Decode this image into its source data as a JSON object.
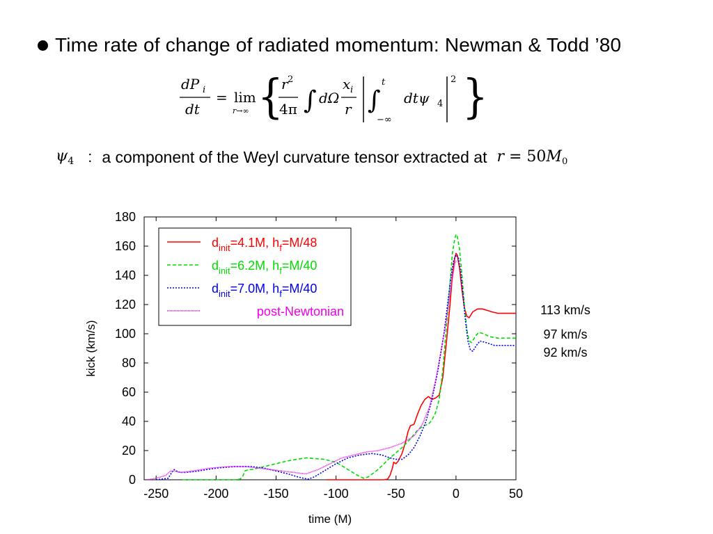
{
  "heading": {
    "text": "Time rate of change of radiated momentum: Newman & Todd ’80"
  },
  "equation": {
    "lhs_num": "dP",
    "lhs_num_sub": "i",
    "lhs_den": "dt",
    "lim": "lim",
    "lim_sub": "r→∞",
    "frac1_num": "r",
    "frac1_num_sup": "2",
    "frac1_den": "4π",
    "integral_body": "dΩ",
    "frac2_num": "x",
    "frac2_num_sub": "i",
    "frac2_den": "r",
    "inner_upper": "t",
    "inner_lower": "−∞",
    "inner_body": "dtψ",
    "inner_body_sub": "4",
    "power": "2"
  },
  "psi_line": {
    "symbol": "ψ",
    "symbol_sub": "4",
    "colon": ":",
    "description": "a component of the Weyl curvature tensor extracted at",
    "math_r": "r",
    "math_eq": " = 50",
    "math_M": "M",
    "math_M_sub": "0"
  },
  "chart_data": {
    "type": "line",
    "xlabel": "time (M)",
    "ylabel": "kick (km/s)",
    "xlim": [
      -260,
      50
    ],
    "ylim": [
      0,
      180
    ],
    "xticks": [
      -250,
      -200,
      -150,
      -100,
      -50,
      0,
      50
    ],
    "yticks": [
      0,
      20,
      40,
      60,
      80,
      100,
      120,
      140,
      160,
      180
    ],
    "grid": false,
    "legend_position": "top-left",
    "series": [
      {
        "name_main": "d",
        "name_sub1": "init",
        "name_mid": "=4.1M, h",
        "name_sub2": "f",
        "name_end": "=M/48",
        "color": "#ff0000",
        "dash": "none",
        "points": [
          [
            -108,
            0
          ],
          [
            -80,
            0
          ],
          [
            -60,
            0
          ],
          [
            -57,
            0.5
          ],
          [
            -55,
            3
          ],
          [
            -53,
            8
          ],
          [
            -52,
            12
          ],
          [
            -50,
            11
          ],
          [
            -48,
            13
          ],
          [
            -45,
            18
          ],
          [
            -42,
            26
          ],
          [
            -40,
            33
          ],
          [
            -38,
            37
          ],
          [
            -35,
            38
          ],
          [
            -32,
            45
          ],
          [
            -29,
            51
          ],
          [
            -26,
            55
          ],
          [
            -23,
            57
          ],
          [
            -20,
            55
          ],
          [
            -17,
            56
          ],
          [
            -14,
            58
          ],
          [
            -11,
            70
          ],
          [
            -8,
            94
          ],
          [
            -5,
            120
          ],
          [
            -3,
            140
          ],
          [
            -1,
            152
          ],
          [
            0,
            155
          ],
          [
            1,
            154
          ],
          [
            3,
            145
          ],
          [
            5,
            130
          ],
          [
            7,
            118
          ],
          [
            9,
            112
          ],
          [
            11,
            111
          ],
          [
            14,
            115
          ],
          [
            18,
            117
          ],
          [
            22,
            117
          ],
          [
            26,
            116
          ],
          [
            30,
            115
          ],
          [
            35,
            114
          ],
          [
            42,
            114
          ],
          [
            50,
            114
          ]
        ]
      },
      {
        "name_main": "d",
        "name_sub1": "init",
        "name_mid": "=6.2M, h",
        "name_sub2": "f",
        "name_end": "=M/40",
        "color": "#00dd00",
        "dash": "5,3",
        "points": [
          [
            -228,
            0
          ],
          [
            -200,
            0
          ],
          [
            -185,
            0
          ],
          [
            -180,
            0.5
          ],
          [
            -178,
            2
          ],
          [
            -176,
            6
          ],
          [
            -173,
            7
          ],
          [
            -170,
            7
          ],
          [
            -165,
            8
          ],
          [
            -160,
            9
          ],
          [
            -150,
            11
          ],
          [
            -140,
            13
          ],
          [
            -125,
            15
          ],
          [
            -110,
            14
          ],
          [
            -100,
            12
          ],
          [
            -90,
            7
          ],
          [
            -82,
            3
          ],
          [
            -77,
            1
          ],
          [
            -73,
            2
          ],
          [
            -65,
            7
          ],
          [
            -55,
            15
          ],
          [
            -45,
            22
          ],
          [
            -38,
            28
          ],
          [
            -32,
            34
          ],
          [
            -27,
            37
          ],
          [
            -23,
            38
          ],
          [
            -20,
            41
          ],
          [
            -17,
            46
          ],
          [
            -14,
            55
          ],
          [
            -11,
            75
          ],
          [
            -8,
            105
          ],
          [
            -5,
            135
          ],
          [
            -3,
            155
          ],
          [
            -1,
            165
          ],
          [
            0,
            168
          ],
          [
            1,
            167
          ],
          [
            3,
            158
          ],
          [
            5,
            140
          ],
          [
            7,
            120
          ],
          [
            9,
            103
          ],
          [
            11,
            95
          ],
          [
            13,
            94
          ],
          [
            16,
            98
          ],
          [
            19,
            101
          ],
          [
            23,
            100
          ],
          [
            28,
            98
          ],
          [
            35,
            97
          ],
          [
            42,
            97
          ],
          [
            50,
            97
          ]
        ]
      },
      {
        "name_main": "d",
        "name_sub1": "init",
        "name_mid": "=7.0M, h",
        "name_sub2": "f",
        "name_end": "=M/40",
        "color": "#0000ee",
        "dash": "2,2",
        "points": [
          [
            -250,
            0
          ],
          [
            -240,
            1
          ],
          [
            -237,
            5
          ],
          [
            -235,
            7
          ],
          [
            -233,
            6
          ],
          [
            -230,
            5
          ],
          [
            -225,
            5
          ],
          [
            -215,
            6
          ],
          [
            -200,
            8
          ],
          [
            -185,
            9
          ],
          [
            -170,
            9
          ],
          [
            -160,
            8
          ],
          [
            -150,
            6
          ],
          [
            -140,
            4
          ],
          [
            -132,
            2
          ],
          [
            -127,
            1
          ],
          [
            -123,
            0.5
          ],
          [
            -118,
            2
          ],
          [
            -110,
            6
          ],
          [
            -100,
            11
          ],
          [
            -90,
            15
          ],
          [
            -80,
            17
          ],
          [
            -70,
            18
          ],
          [
            -62,
            17
          ],
          [
            -55,
            15
          ],
          [
            -50,
            14
          ],
          [
            -45,
            14
          ],
          [
            -40,
            17
          ],
          [
            -35,
            22
          ],
          [
            -30,
            30
          ],
          [
            -25,
            40
          ],
          [
            -20,
            55
          ],
          [
            -15,
            75
          ],
          [
            -10,
            100
          ],
          [
            -7,
            120
          ],
          [
            -4,
            140
          ],
          [
            -2,
            150
          ],
          [
            0,
            154
          ],
          [
            2,
            152
          ],
          [
            4,
            142
          ],
          [
            6,
            125
          ],
          [
            8,
            108
          ],
          [
            10,
            95
          ],
          [
            12,
            89
          ],
          [
            14,
            88
          ],
          [
            17,
            92
          ],
          [
            20,
            95
          ],
          [
            25,
            94
          ],
          [
            32,
            92
          ],
          [
            40,
            92
          ],
          [
            50,
            92
          ]
        ]
      },
      {
        "name_main": "post-Newtonian",
        "color": "#ee00ee",
        "dash": "1,1",
        "points": [
          [
            -258,
            0
          ],
          [
            -250,
            1
          ],
          [
            -242,
            3
          ],
          [
            -238,
            6
          ],
          [
            -235,
            6
          ],
          [
            -230,
            5
          ],
          [
            -220,
            6
          ],
          [
            -205,
            8
          ],
          [
            -190,
            9
          ],
          [
            -175,
            9
          ],
          [
            -165,
            8
          ],
          [
            -155,
            7
          ],
          [
            -145,
            6
          ],
          [
            -135,
            5
          ],
          [
            -125,
            4
          ],
          [
            -115,
            7
          ],
          [
            -105,
            11
          ],
          [
            -95,
            15
          ],
          [
            -85,
            17
          ],
          [
            -75,
            19
          ],
          [
            -65,
            20
          ],
          [
            -55,
            22
          ],
          [
            -45,
            25
          ],
          [
            -35,
            30
          ],
          [
            -28,
            38
          ],
          [
            -22,
            50
          ],
          [
            -17,
            68
          ],
          [
            -12,
            90
          ],
          [
            -8,
            110
          ],
          [
            -4,
            133
          ],
          [
            -1,
            148
          ],
          [
            0,
            150
          ]
        ]
      }
    ],
    "annotations": [
      "113 km/s",
      "97 km/s",
      "92 km/s"
    ]
  }
}
